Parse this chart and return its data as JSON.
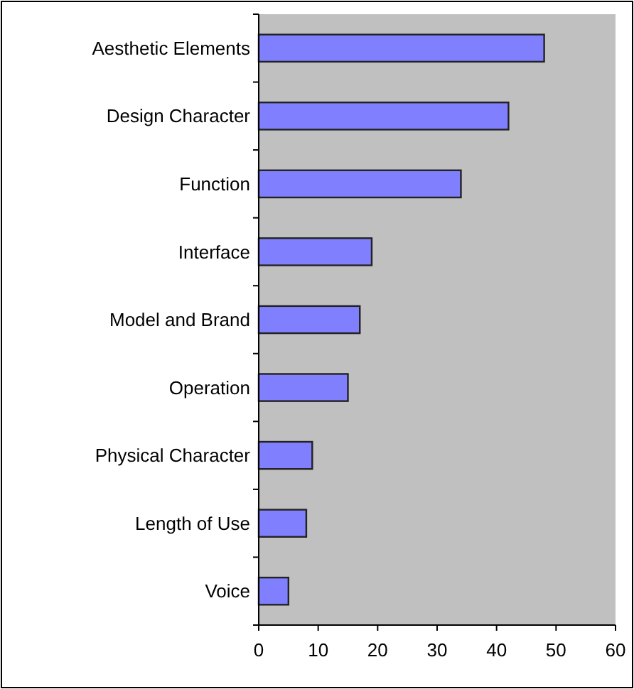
{
  "chart_data": {
    "type": "bar",
    "orientation": "horizontal",
    "categories": [
      "Aesthetic Elements",
      "Design Character",
      "Function",
      "Interface",
      "Model and Brand",
      "Operation",
      "Physical Character",
      "Length of Use",
      "Voice"
    ],
    "values": [
      48,
      42,
      34,
      19,
      17,
      15,
      9,
      8,
      5
    ],
    "color": "#8080ff",
    "xlim": [
      0,
      60
    ],
    "xticks": [
      0,
      10,
      20,
      30,
      40,
      50,
      60
    ],
    "grid": false
  }
}
